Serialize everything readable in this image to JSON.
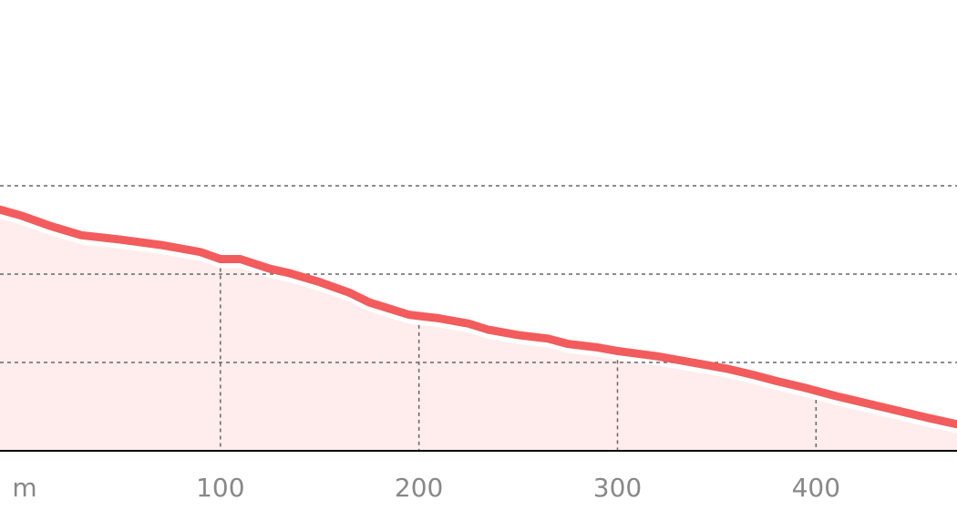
{
  "chart_data": {
    "type": "area",
    "x_unit_label": "m",
    "x_ticks": [
      100,
      200,
      300,
      400
    ],
    "xlim": [
      -11,
      471
    ],
    "ylim": [
      0,
      5
    ],
    "y_gridlines": [
      1,
      2,
      3
    ],
    "grid": "dashed",
    "colors": {
      "line": "#f25c5c",
      "fill": "#ffecec",
      "grid": "#666666",
      "axis": "#000000",
      "tick_label": "#888888"
    },
    "series": [
      {
        "x": [
          -11,
          0,
          15,
          30,
          50,
          70,
          90,
          100,
          110,
          125,
          135,
          150,
          165,
          175,
          185,
          195,
          210,
          225,
          235,
          250,
          265,
          275,
          290,
          300,
          310,
          320,
          330,
          340,
          355,
          370,
          380,
          395,
          410,
          425,
          440,
          455,
          471
        ],
        "y": [
          2.73,
          2.66,
          2.54,
          2.44,
          2.39,
          2.33,
          2.25,
          2.17,
          2.17,
          2.06,
          2.01,
          1.91,
          1.79,
          1.68,
          1.61,
          1.54,
          1.5,
          1.44,
          1.37,
          1.31,
          1.27,
          1.21,
          1.17,
          1.13,
          1.1,
          1.07,
          1.03,
          0.99,
          0.93,
          0.85,
          0.79,
          0.71,
          0.62,
          0.54,
          0.46,
          0.38,
          0.3
        ]
      }
    ]
  }
}
